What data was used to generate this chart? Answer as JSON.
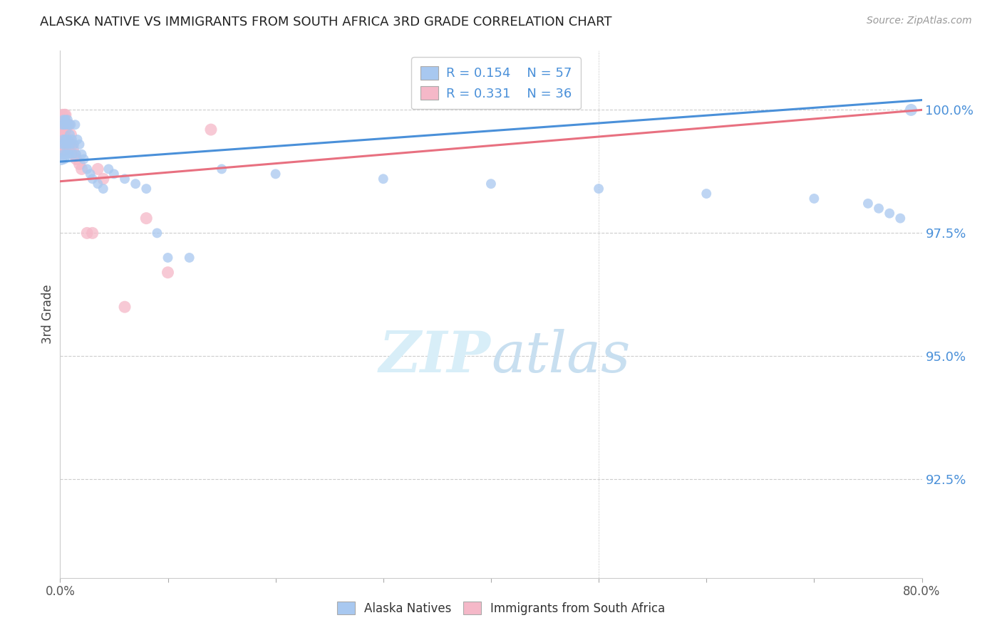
{
  "title": "ALASKA NATIVE VS IMMIGRANTS FROM SOUTH AFRICA 3RD GRADE CORRELATION CHART",
  "source": "Source: ZipAtlas.com",
  "ylabel": "3rd Grade",
  "ytick_labels": [
    "100.0%",
    "97.5%",
    "95.0%",
    "92.5%"
  ],
  "ytick_values": [
    1.0,
    0.975,
    0.95,
    0.925
  ],
  "xlim": [
    0.0,
    0.8
  ],
  "ylim": [
    0.905,
    1.012
  ],
  "legend_blue_r": "R = 0.154",
  "legend_blue_n": "N = 57",
  "legend_pink_r": "R = 0.331",
  "legend_pink_n": "N = 36",
  "blue_color": "#A8C8F0",
  "pink_color": "#F5B8C8",
  "line_blue_color": "#4A90D9",
  "line_pink_color": "#E87080",
  "tick_color": "#4A90D9",
  "grid_color": "#CCCCCC",
  "watermark_color": "#D8EEF8",
  "blue_x": [
    0.001,
    0.002,
    0.002,
    0.003,
    0.003,
    0.003,
    0.004,
    0.004,
    0.004,
    0.005,
    0.005,
    0.005,
    0.006,
    0.006,
    0.007,
    0.007,
    0.007,
    0.008,
    0.008,
    0.009,
    0.009,
    0.01,
    0.01,
    0.011,
    0.012,
    0.013,
    0.014,
    0.015,
    0.016,
    0.018,
    0.02,
    0.022,
    0.025,
    0.028,
    0.03,
    0.035,
    0.04,
    0.045,
    0.05,
    0.06,
    0.07,
    0.08,
    0.09,
    0.1,
    0.12,
    0.15,
    0.2,
    0.3,
    0.4,
    0.5,
    0.6,
    0.7,
    0.75,
    0.76,
    0.77,
    0.78,
    0.79
  ],
  "blue_y": [
    0.99,
    0.993,
    0.997,
    0.991,
    0.994,
    0.998,
    0.99,
    0.993,
    0.997,
    0.991,
    0.994,
    0.998,
    0.993,
    0.997,
    0.991,
    0.994,
    0.998,
    0.993,
    0.997,
    0.991,
    0.995,
    0.993,
    0.997,
    0.994,
    0.991,
    0.993,
    0.997,
    0.991,
    0.994,
    0.993,
    0.991,
    0.99,
    0.988,
    0.987,
    0.986,
    0.985,
    0.984,
    0.988,
    0.987,
    0.986,
    0.985,
    0.984,
    0.975,
    0.97,
    0.97,
    0.988,
    0.987,
    0.986,
    0.985,
    0.984,
    0.983,
    0.982,
    0.981,
    0.98,
    0.979,
    0.978,
    1.0
  ],
  "blue_sizes": [
    150,
    100,
    100,
    100,
    100,
    100,
    100,
    100,
    100,
    100,
    100,
    100,
    100,
    100,
    100,
    100,
    100,
    100,
    100,
    100,
    100,
    100,
    100,
    100,
    100,
    100,
    100,
    100,
    100,
    100,
    100,
    100,
    100,
    100,
    100,
    100,
    100,
    100,
    100,
    100,
    100,
    100,
    100,
    100,
    100,
    100,
    100,
    100,
    100,
    100,
    100,
    100,
    100,
    100,
    100,
    100,
    150
  ],
  "pink_x": [
    0.001,
    0.001,
    0.002,
    0.002,
    0.002,
    0.003,
    0.003,
    0.003,
    0.004,
    0.004,
    0.004,
    0.005,
    0.005,
    0.005,
    0.006,
    0.006,
    0.007,
    0.007,
    0.008,
    0.008,
    0.009,
    0.01,
    0.011,
    0.012,
    0.013,
    0.015,
    0.018,
    0.02,
    0.025,
    0.03,
    0.035,
    0.04,
    0.06,
    0.08,
    0.1,
    0.14
  ],
  "pink_y": [
    0.993,
    0.998,
    0.994,
    0.997,
    0.999,
    0.992,
    0.995,
    0.998,
    0.992,
    0.995,
    0.999,
    0.993,
    0.996,
    0.999,
    0.993,
    0.997,
    0.993,
    0.997,
    0.993,
    0.997,
    0.993,
    0.995,
    0.993,
    0.992,
    0.991,
    0.99,
    0.989,
    0.988,
    0.975,
    0.975,
    0.988,
    0.986,
    0.96,
    0.978,
    0.967,
    0.996
  ],
  "pink_sizes": [
    700,
    200,
    200,
    150,
    150,
    150,
    150,
    150,
    150,
    150,
    150,
    150,
    150,
    150,
    150,
    150,
    150,
    150,
    150,
    150,
    150,
    150,
    150,
    150,
    150,
    150,
    150,
    150,
    150,
    150,
    150,
    150,
    150,
    150,
    150,
    150
  ],
  "blue_trend": [
    0.9895,
    1.002
  ],
  "pink_trend": [
    0.9855,
    1.0
  ]
}
